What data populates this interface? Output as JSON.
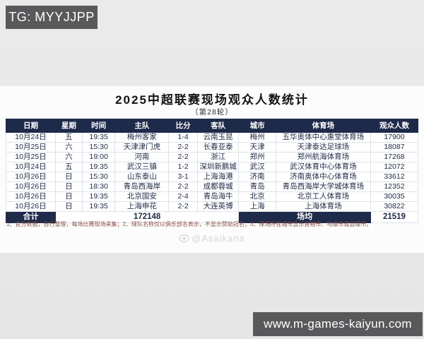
{
  "overlays": {
    "tg_badge": "TG: MYYJJPP",
    "site_badge": "www.m-games-kaiyun.com",
    "watermark": "@Asaikana"
  },
  "header": {
    "title": "2025中超联赛现场观众人数统计",
    "subtitle": "（第28轮）"
  },
  "table": {
    "columns": [
      "日期",
      "星期",
      "时间",
      "主队",
      "比分",
      "客队",
      "城市",
      "体育场",
      "观众人数"
    ],
    "rows": [
      [
        "10月24日",
        "五",
        "19:35",
        "梅州客家",
        "1-4",
        "云南玉昆",
        "梅州",
        "五华奥体中心惠堂体育场",
        "17900"
      ],
      [
        "10月25日",
        "六",
        "15:30",
        "天津津门虎",
        "2-2",
        "长春亚泰",
        "天津",
        "天津泰达足球场",
        "18087"
      ],
      [
        "10月25日",
        "六",
        "19:00",
        "河南",
        "2-2",
        "浙江",
        "郑州",
        "郑州航海体育场",
        "17268"
      ],
      [
        "10月24日",
        "五",
        "19:35",
        "武汉三镇",
        "1-2",
        "深圳新鹏城",
        "武汉",
        "武汉体育中心体育场",
        "12072"
      ],
      [
        "10月26日",
        "日",
        "15:30",
        "山东泰山",
        "3-1",
        "上海海港",
        "济南",
        "济南奥体中心体育场",
        "33612"
      ],
      [
        "10月26日",
        "日",
        "18:30",
        "青岛西海岸",
        "2-2",
        "成都蓉城",
        "青岛",
        "青岛西海岸大学城体育场",
        "12352"
      ],
      [
        "10月26日",
        "日",
        "19:35",
        "北京国安",
        "2-4",
        "青岛海牛",
        "北京",
        "北京工人体育场",
        "30035"
      ],
      [
        "10月26日",
        "日",
        "19:35",
        "上海申花",
        "2-2",
        "大连英博",
        "上海",
        "上海体育场",
        "30822"
      ]
    ],
    "footer": {
      "total_label": "合计",
      "total_value": "172148",
      "avg_label": "场均",
      "avg_value": "21519"
    }
  },
  "footnote": "1、官方数据，自行整理，每场比赛现场采集；2、球队名称仅以俱乐部名表示，不显示赞助冠名；3、球场所在城市显示直辖市、地级市或县级市。",
  "colors": {
    "header_bg": "#1e2a4a",
    "badge_bg": "#59595b",
    "footnote_color": "#8a5147"
  }
}
